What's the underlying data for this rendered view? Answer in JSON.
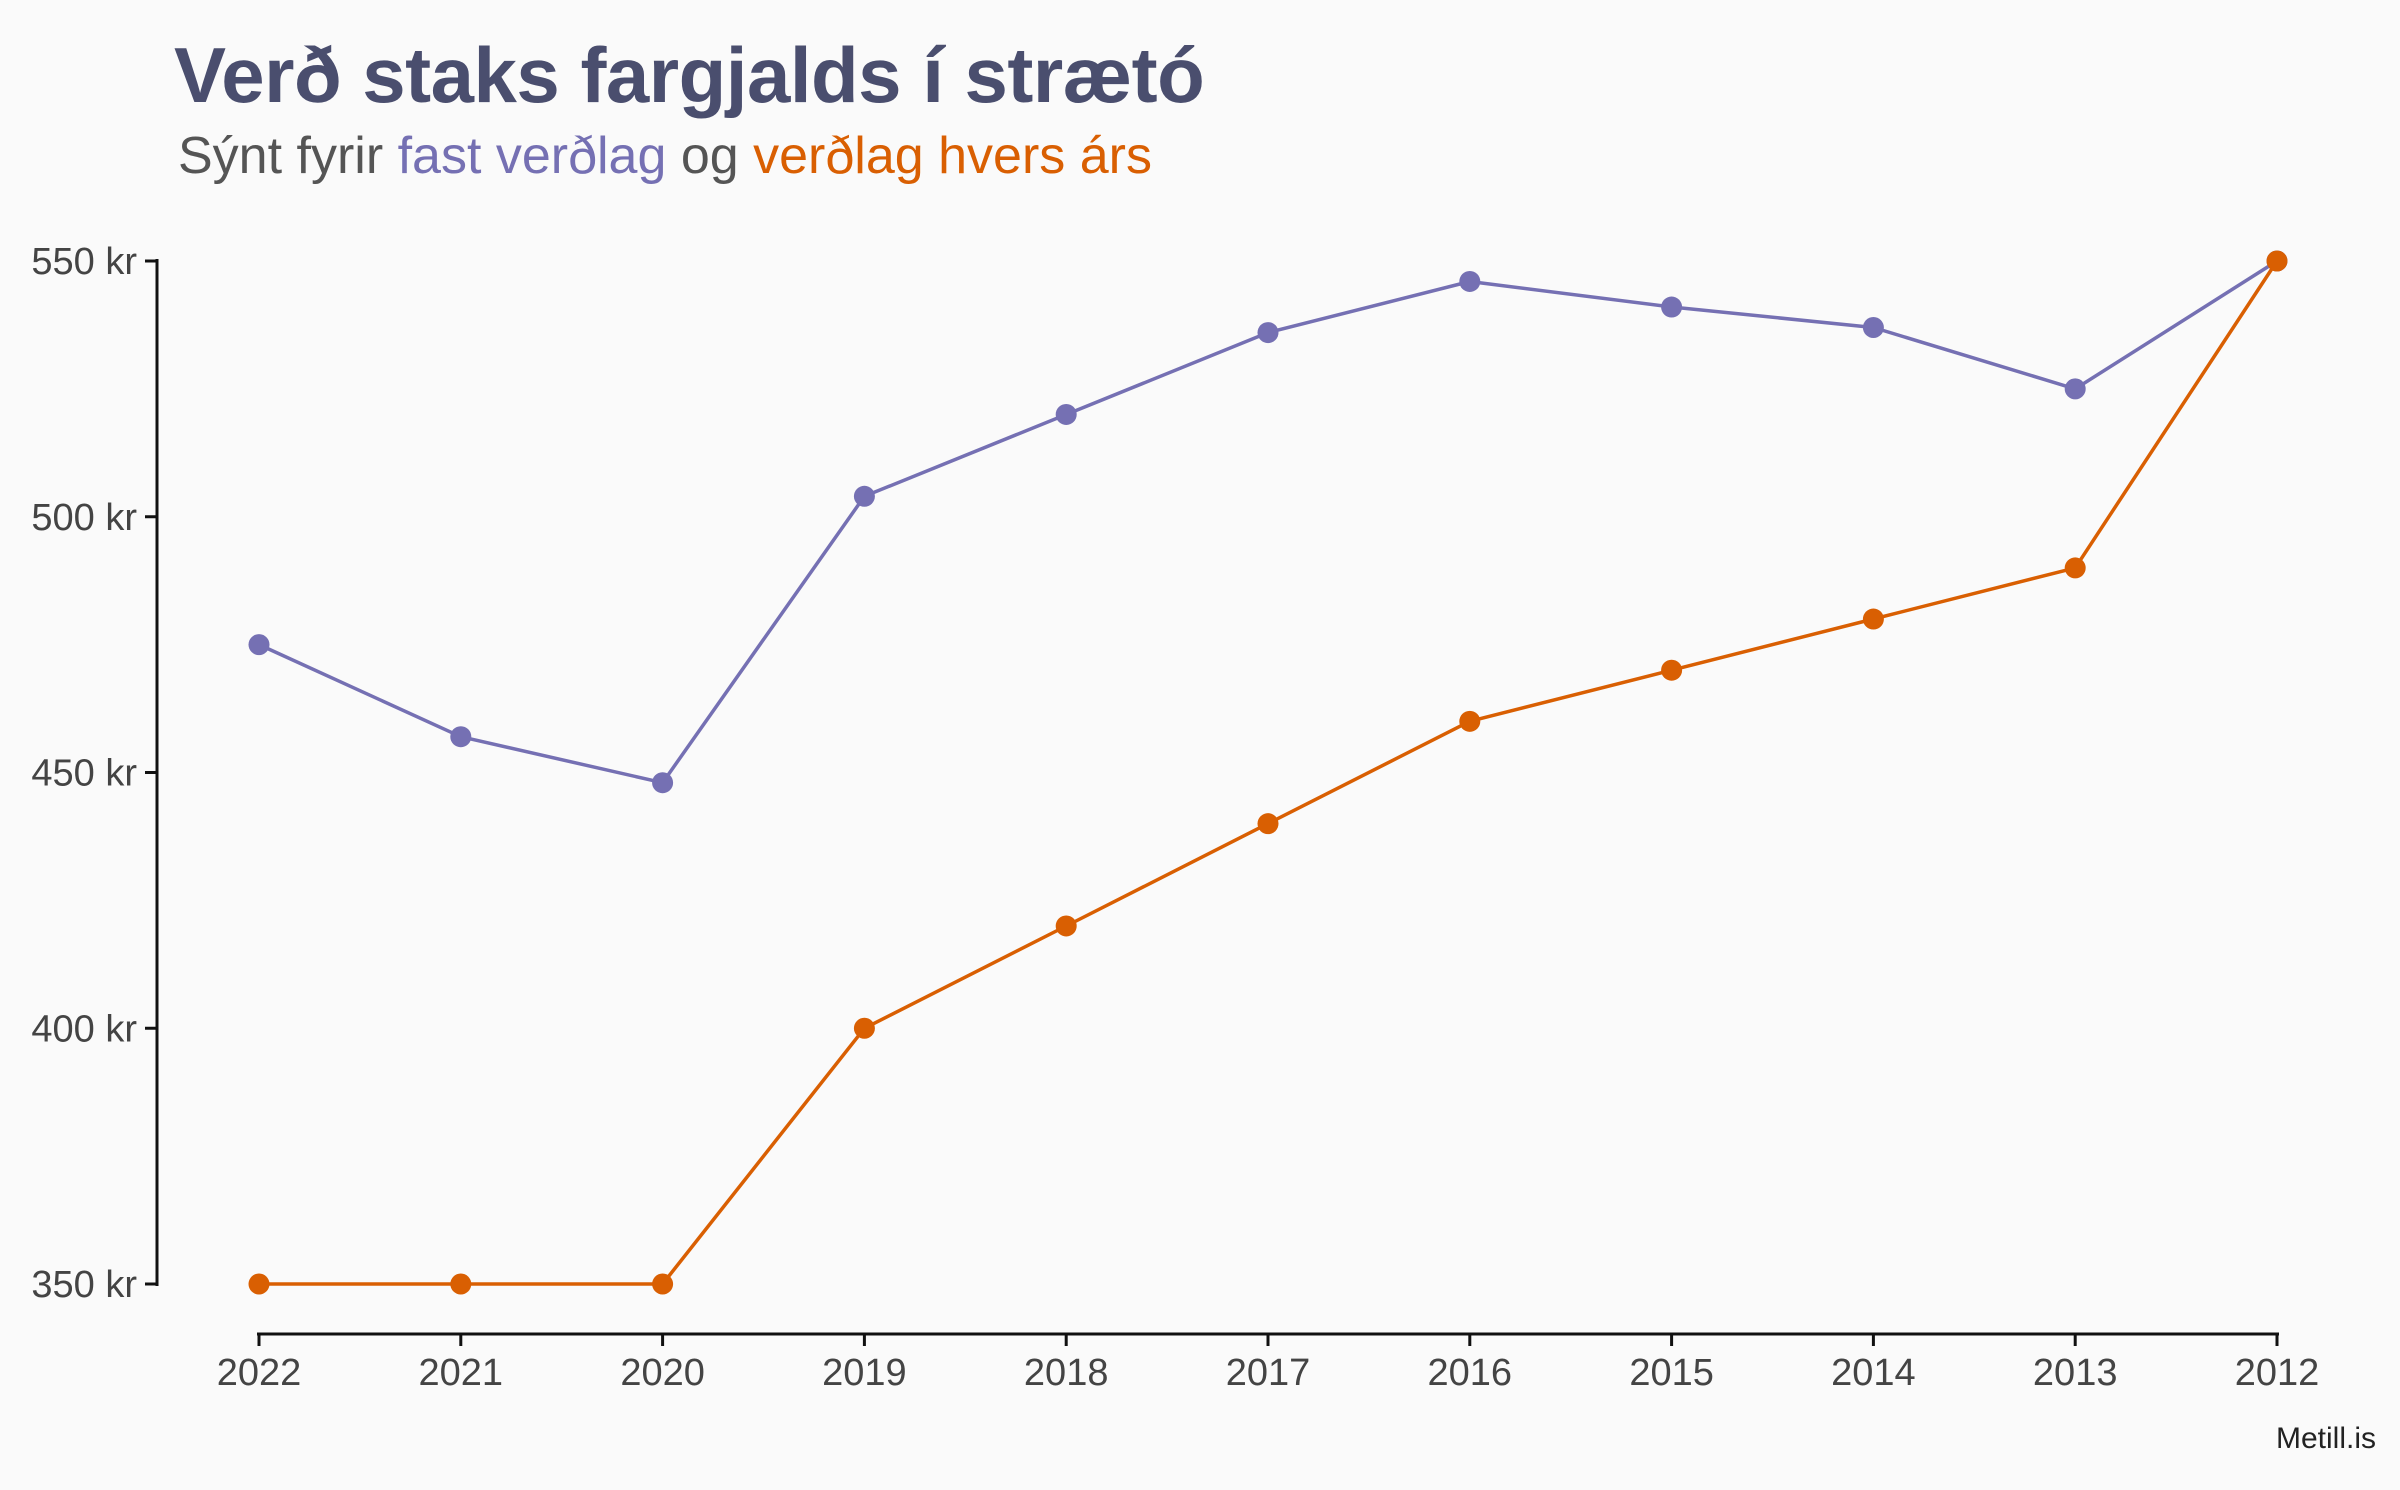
{
  "title": "Verð staks fargjalds í strætó",
  "subtitle": {
    "prefix": "Sýnt fyrir ",
    "series1_label": "fast verðlag",
    "connector": " og ",
    "series2_label": "verðlag hvers árs"
  },
  "source": "Metill.is",
  "colors": {
    "fixed": "#7570b3",
    "nominal": "#d95f02",
    "axis": "#111111",
    "text": "#444444",
    "background": "#fafafa"
  },
  "chart_data": {
    "type": "line",
    "x": [
      "2022",
      "2021",
      "2020",
      "2019",
      "2018",
      "2017",
      "2016",
      "2015",
      "2014",
      "2013",
      "2012"
    ],
    "series": [
      {
        "name": "fast verðlag",
        "color": "#7570b3",
        "values": [
          475,
          457,
          448,
          504,
          520,
          536,
          546,
          541,
          537,
          525,
          550
        ]
      },
      {
        "name": "verðlag hvers árs",
        "color": "#d95f02",
        "values": [
          350,
          350,
          350,
          400,
          420,
          440,
          460,
          470,
          480,
          490,
          550
        ]
      }
    ],
    "yticks": [
      350,
      400,
      450,
      500,
      550
    ],
    "ytick_labels": [
      "350 kr",
      "400 kr",
      "450 kr",
      "500 kr",
      "550 kr"
    ],
    "ylim": [
      350,
      550
    ],
    "xlabel": "",
    "ylabel": "",
    "grid": false,
    "legend": "subtitle"
  }
}
